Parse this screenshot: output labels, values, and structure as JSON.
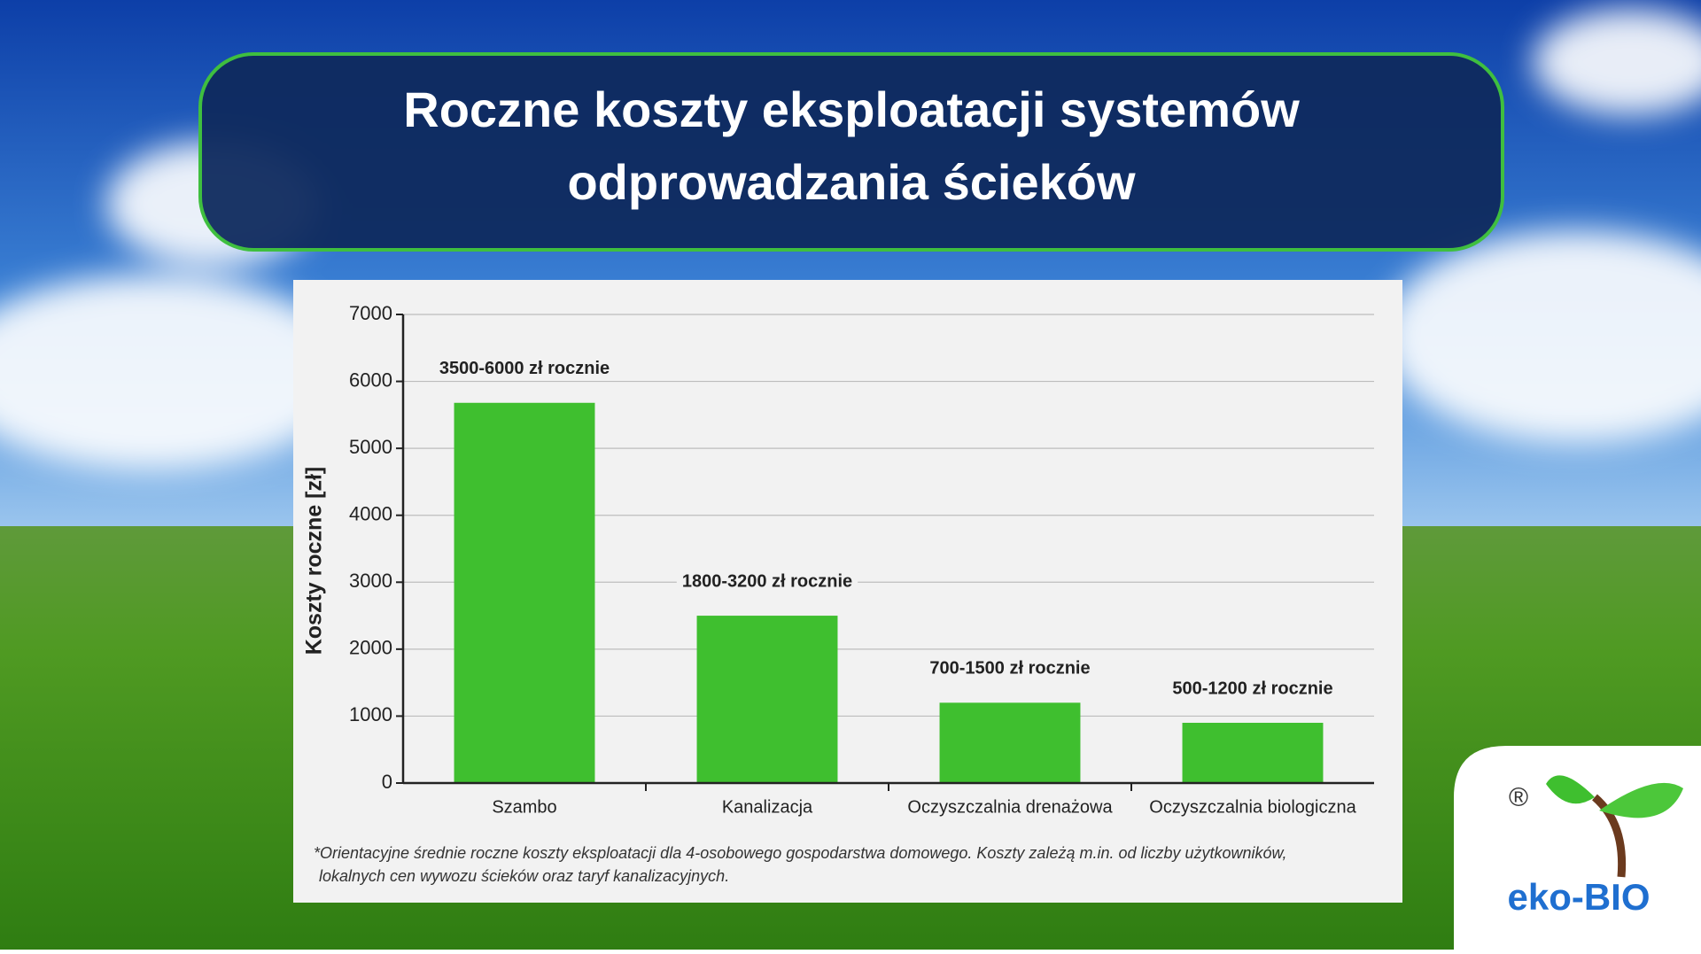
{
  "header": {
    "title_lines": [
      "Roczne koszty eksploatacji systemów",
      "odprowadzania ścieków"
    ]
  },
  "chart_data": {
    "type": "bar",
    "y_label": "Koszty roczne [zł]",
    "categories": [
      "Szambo",
      "Kanalizacja",
      "Oczyszczalnia drenażowa",
      "Oczyszczalnia biologiczna"
    ],
    "values": [
      5680,
      2500,
      1200,
      900
    ],
    "annotations": [
      "3500-6000 zł rocznie",
      "1800-3200 zł rocznie",
      "700-1500 zł rocznie",
      "500-1200 zł rocznie"
    ],
    "color": "#3fbf2f",
    "ylim": [
      0,
      7000
    ],
    "yticks": [
      0,
      1000,
      2000,
      3000,
      4000,
      5000,
      6000,
      7000
    ],
    "grid": true,
    "footnote": [
      "*Orientacyjne średnie roczne koszty eksploatacji dla 4-osobowego gospodarstwa domowego. Koszty zależą m.in. od liczby użytkowników,",
      "lokalnych cen wywozu ścieków oraz taryf kanalizacyjnych."
    ]
  },
  "logo": {
    "mark": "®",
    "text": "eko-BIO"
  }
}
